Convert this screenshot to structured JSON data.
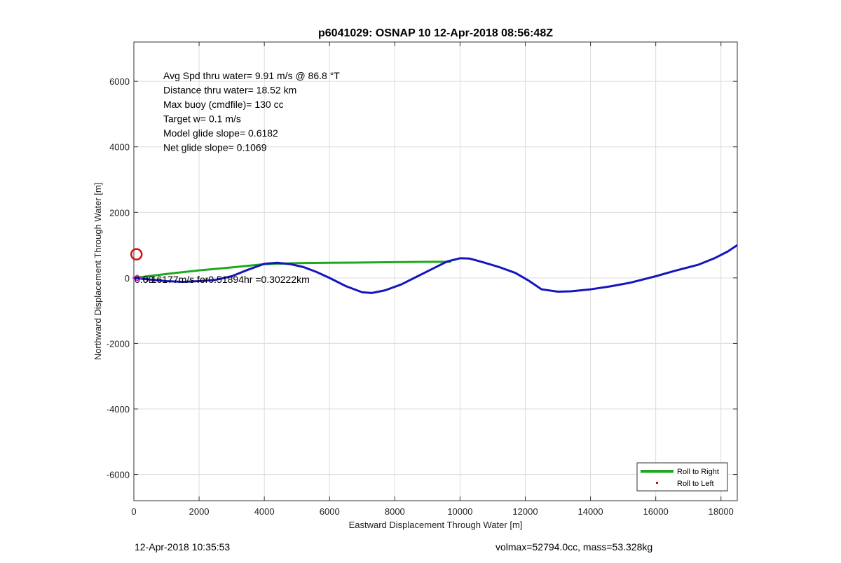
{
  "footer": {
    "timestamp": "12-Apr-2018 10:35:53",
    "vol_mass": "volmax=52794.0cc, mass=53.328kg"
  },
  "chart_data": {
    "type": "line",
    "title": "p6041029: OSNAP 10 12-Apr-2018 08:56:48Z",
    "xlabel": "Eastward Displacement Through Water [m]",
    "ylabel": "Northward Displacement Through Water [m]",
    "xlim": [
      0,
      18500
    ],
    "ylim": [
      -6800,
      7200
    ],
    "xticks": [
      0,
      2000,
      4000,
      6000,
      8000,
      10000,
      12000,
      14000,
      16000,
      18000
    ],
    "yticks": [
      -6000,
      -4000,
      -2000,
      0,
      2000,
      4000,
      6000
    ],
    "grid": true,
    "annotations": [
      "Avg Spd thru water=  9.91 m/s @  86.8 °T",
      "Distance thru water= 18.52 km",
      "Max buoy (cmdfile)= 130 cc",
      "Target w= 0.1 m/s",
      "Model glide slope= 0.6182",
      "Net glide slope= 0.1069"
    ],
    "current_label": "0.16177m/s for0.51894hr =0.30222km",
    "current_label_overlap": "0.00",
    "legend": {
      "placement": "bottom-right",
      "entries": [
        "Roll to Right",
        "Roll to Left"
      ]
    },
    "colors": {
      "blue_track": "#1515c0",
      "green_track": "#1ea81e",
      "red_marker": "#cc1111",
      "magenta_marker": "#cc22cc"
    },
    "series": [
      {
        "name": "Roll to Right",
        "role": "green_track",
        "x": [
          0,
          1000,
          2000,
          3000,
          4000,
          5000,
          6000,
          7000,
          8000,
          9000,
          9700
        ],
        "y": [
          0,
          120,
          230,
          320,
          420,
          450,
          460,
          470,
          480,
          490,
          490
        ]
      },
      {
        "role": "blue_track",
        "x": [
          0,
          500,
          1000,
          1500,
          2000,
          2500,
          3000,
          3500,
          4000,
          4400,
          4800,
          5200,
          5600,
          6000,
          6500,
          7000,
          7300,
          7700,
          8200,
          8700,
          9200,
          9600,
          10000,
          10300,
          10700,
          11200,
          11700,
          12100,
          12500,
          13000,
          13400,
          14000,
          14600,
          15200,
          16000,
          16600,
          17300,
          17800,
          18200,
          18500
        ],
        "y": [
          0,
          -50,
          -100,
          -120,
          -100,
          -60,
          50,
          250,
          430,
          460,
          420,
          330,
          180,
          0,
          -250,
          -440,
          -460,
          -380,
          -200,
          50,
          300,
          500,
          600,
          590,
          480,
          330,
          150,
          -80,
          -350,
          -420,
          -410,
          -350,
          -260,
          -150,
          50,
          220,
          400,
          600,
          800,
          1000
        ]
      }
    ],
    "markers": [
      {
        "role": "red_marker",
        "shape": "circle",
        "x": 80,
        "y": 720
      },
      {
        "role": "magenta_marker",
        "shape": "diamond",
        "x": 100,
        "y": 0
      }
    ]
  }
}
